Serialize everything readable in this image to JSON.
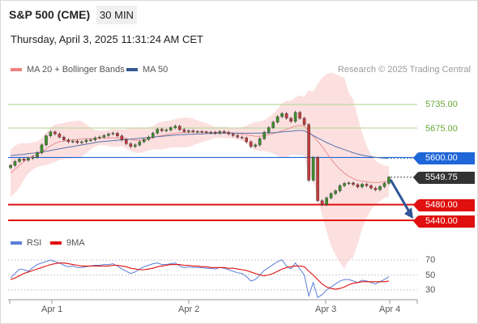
{
  "header": {
    "title": "S&P 500 (CME)",
    "timeframe": "30 MIN",
    "datetime": "Thursday, April 3, 2025 11:31:24 AM CET"
  },
  "legend": {
    "bollinger": {
      "label": "MA 20 + Bollinger Bands",
      "color": "#f08080"
    },
    "ma50": {
      "label": "MA 50",
      "color": "#335a92"
    },
    "credit": "Research © 2025 Trading Central"
  },
  "levels": {
    "resistance2": {
      "label": "5735.00",
      "value": 5735,
      "color": "#6aa839"
    },
    "resistance1": {
      "label": "5675.00",
      "value": 5675,
      "color": "#6aa839"
    },
    "pivot": {
      "label": "5600.00",
      "value": 5600,
      "color": "#1f66d9"
    },
    "last": {
      "label": "5549.75",
      "value": 5549.75,
      "color": "#333333"
    },
    "support1": {
      "label": "5480.00",
      "value": 5480,
      "color": "#e01010"
    },
    "support2": {
      "label": "5440.00",
      "value": 5440,
      "color": "#e01010"
    }
  },
  "rsi_panel": {
    "rsi_label": "RSI",
    "rsi_color": "#5a7fd6",
    "ma_label": "9MA",
    "ma_color": "#e01010",
    "levels": [
      "70",
      "50",
      "30"
    ]
  },
  "x_axis": {
    "labels": [
      "Apr 1",
      "Apr 2",
      "Apr 3",
      "Apr 4"
    ]
  },
  "chart_data": {
    "type": "line",
    "title": "S&P 500 (CME)",
    "interval": "30 MIN",
    "y_visible_range": [
      5400,
      5775
    ],
    "candles_close": [
      5580,
      5590,
      5596,
      5593,
      5598,
      5601,
      5612,
      5632,
      5655,
      5665,
      5660,
      5652,
      5645,
      5640,
      5642,
      5638,
      5640,
      5644,
      5645,
      5650,
      5652,
      5656,
      5660,
      5662,
      5655,
      5645,
      5635,
      5628,
      5632,
      5640,
      5646,
      5652,
      5662,
      5672,
      5668,
      5670,
      5676,
      5680,
      5671,
      5666,
      5668,
      5666,
      5666,
      5665,
      5664,
      5664,
      5662,
      5666,
      5664,
      5660,
      5656,
      5652,
      5650,
      5640,
      5628,
      5632,
      5648,
      5664,
      5676,
      5690,
      5704,
      5712,
      5700,
      5692,
      5715,
      5700,
      5684,
      5542,
      5600,
      5490,
      5480,
      5497,
      5508,
      5515,
      5528,
      5534,
      5535,
      5531,
      5525,
      5532,
      5528,
      5522,
      5518,
      5526,
      5534,
      5549.75
    ],
    "series": [
      {
        "name": "MA 20 + Bollinger Bands",
        "values": [
          5560,
          5570,
          5580,
          5590,
          5598,
          5604,
          5608,
          5614,
          5622,
          5630,
          5636,
          5640,
          5642,
          5644,
          5645,
          5646,
          5647,
          5648,
          5648,
          5649,
          5650,
          5650,
          5650,
          5650,
          5650,
          5650,
          5648,
          5646,
          5644,
          5644,
          5645,
          5647,
          5650,
          5654,
          5656,
          5658,
          5660,
          5662,
          5663,
          5664,
          5664,
          5665,
          5665,
          5665,
          5665,
          5664,
          5664,
          5664,
          5664,
          5663,
          5662,
          5661,
          5660,
          5658,
          5656,
          5654,
          5654,
          5656,
          5658,
          5661,
          5664,
          5668,
          5672,
          5676,
          5680,
          5682,
          5680,
          5666,
          5654,
          5642,
          5628,
          5612,
          5596,
          5582,
          5570,
          5560,
          5552,
          5546,
          5542,
          5540,
          5538,
          5537,
          5536,
          5537,
          5538,
          5540
        ]
      },
      {
        "name": "MA 50",
        "values": [
          5605,
          5606,
          5607,
          5608,
          5610,
          5611,
          5612,
          5614,
          5616,
          5618,
          5620,
          5622,
          5624,
          5626,
          5628,
          5630,
          5632,
          5634,
          5636,
          5638,
          5640,
          5641,
          5642,
          5643,
          5644,
          5645,
          5646,
          5647,
          5648,
          5649,
          5650,
          5651,
          5652,
          5653,
          5654,
          5655,
          5656,
          5657,
          5658,
          5658,
          5659,
          5659,
          5660,
          5660,
          5661,
          5661,
          5661,
          5662,
          5662,
          5662,
          5662,
          5662,
          5662,
          5662,
          5662,
          5662,
          5662,
          5662,
          5663,
          5663,
          5664,
          5665,
          5666,
          5667,
          5668,
          5669,
          5668,
          5662,
          5656,
          5650,
          5644,
          5638,
          5633,
          5628,
          5624,
          5620,
          5616,
          5612,
          5609,
          5606,
          5604,
          5602,
          5600,
          5599,
          5598,
          5598
        ]
      },
      {
        "name": "RSI",
        "values": [
          46,
          52,
          58,
          57,
          55,
          60,
          64,
          66,
          68,
          70,
          68,
          66,
          63,
          61,
          62,
          60,
          60,
          61,
          62,
          63,
          63,
          64,
          64,
          65,
          62,
          58,
          55,
          52,
          54,
          58,
          61,
          63,
          65,
          66,
          64,
          64,
          65,
          66,
          62,
          60,
          61,
          60,
          60,
          60,
          59,
          59,
          58,
          60,
          59,
          57,
          55,
          53,
          52,
          48,
          42,
          44,
          50,
          56,
          60,
          64,
          68,
          70,
          62,
          58,
          66,
          58,
          50,
          22,
          40,
          20,
          24,
          30,
          34,
          38,
          42,
          44,
          44,
          42,
          40,
          43,
          42,
          40,
          38,
          41,
          44,
          48
        ]
      },
      {
        "name": "9MA",
        "values": [
          44,
          46,
          49,
          52,
          54,
          56,
          58,
          60,
          62,
          64,
          65,
          66,
          66,
          65,
          64,
          63,
          62,
          62,
          62,
          62,
          62,
          62,
          62,
          63,
          63,
          62,
          61,
          59,
          58,
          57,
          57,
          58,
          59,
          61,
          62,
          63,
          64,
          64,
          64,
          63,
          63,
          62,
          62,
          61,
          61,
          60,
          60,
          60,
          60,
          59,
          59,
          58,
          57,
          56,
          54,
          52,
          50,
          49,
          50,
          52,
          55,
          58,
          60,
          61,
          62,
          62,
          61,
          55,
          50,
          44,
          38,
          34,
          32,
          31,
          32,
          34,
          37,
          39,
          40,
          41,
          41,
          41,
          41,
          41,
          41,
          42
        ]
      }
    ],
    "rsi_range": [
      0,
      100
    ],
    "rsi_levels": [
      70,
      50,
      30
    ],
    "x_labels": [
      "Apr 1",
      "Apr 2",
      "Apr 3",
      "Apr 4"
    ],
    "projection": {
      "from": 5549.75,
      "to": 5440
    }
  }
}
